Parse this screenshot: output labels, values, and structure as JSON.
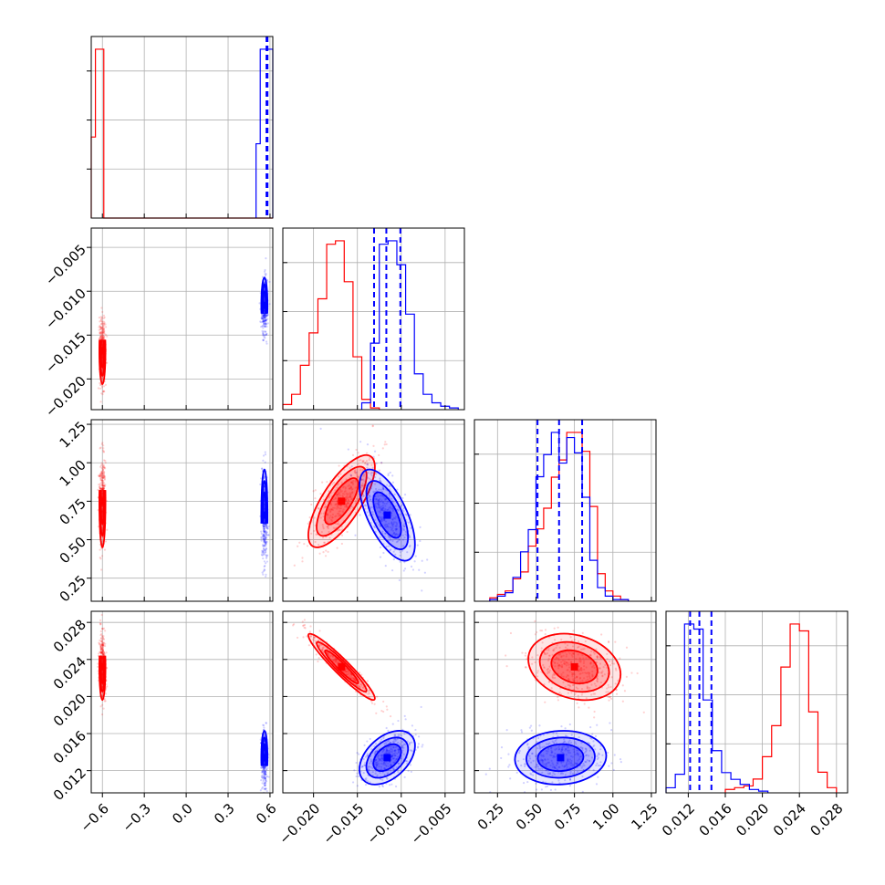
{
  "colors": {
    "series_a": "#ff0000",
    "series_b": "#0000ff"
  },
  "chart_data": {
    "type": "corner",
    "grid": true,
    "params": [
      {
        "range": [
          -0.68,
          0.62
        ],
        "ticks": [
          -0.6,
          -0.3,
          0.0,
          0.3,
          0.6
        ],
        "tick_labels": [
          "−0.6",
          "−0.3",
          "0.0",
          "0.3",
          "0.6"
        ]
      },
      {
        "range": [
          -0.0235,
          -0.0028
        ],
        "ticks": [
          -0.02,
          -0.015,
          -0.01,
          -0.005
        ],
        "tick_labels": [
          "−0.020",
          "−0.015",
          "−0.010",
          "−0.005"
        ]
      },
      {
        "range": [
          0.1,
          1.28
        ],
        "ticks": [
          0.25,
          0.5,
          0.75,
          1.0,
          1.25
        ],
        "tick_labels": [
          "0.25",
          "0.50",
          "0.75",
          "1.00",
          "1.25"
        ]
      },
      {
        "range": [
          0.0096,
          0.0292
        ],
        "ticks": [
          0.012,
          0.016,
          0.02,
          0.024,
          0.028
        ],
        "tick_labels": [
          "0.012",
          "0.016",
          "0.020",
          "0.024",
          "0.028"
        ]
      }
    ],
    "series": [
      {
        "color": "#ff0000",
        "means": [
          -0.6,
          -0.0168,
          0.75,
          0.0232
        ],
        "cov": [
          [
            0.00012,
            0,
            0,
            0
          ],
          [
            0,
            3.6e-06,
            0.00021,
            -3.4e-06
          ],
          [
            0,
            0.00021,
            0.0225,
            -6.1e-05
          ],
          [
            0,
            -3.4e-06,
            -6.1e-05,
            3.2e-06
          ]
        ],
        "hist": [
          {
            "edges": [
              -0.68,
              -0.65,
              -0.62,
              -0.59,
              0.62
            ],
            "counts": [
              0.48,
              1.0,
              1.0,
              0.0
            ]
          },
          {
            "edges": [
              -0.0235,
              -0.0225,
              -0.0215,
              -0.0205,
              -0.0195,
              -0.0185,
              -0.0175,
              -0.0165,
              -0.0155,
              -0.0145,
              -0.0135,
              -0.0125
            ],
            "counts": [
              0.03,
              0.09,
              0.26,
              0.45,
              0.65,
              0.97,
              0.99,
              0.75,
              0.31,
              0.06,
              0.01
            ]
          },
          {
            "edges": [
              0.2,
              0.25,
              0.3,
              0.35,
              0.4,
              0.45,
              0.5,
              0.55,
              0.6,
              0.65,
              0.7,
              0.75,
              0.8,
              0.85,
              0.9,
              0.95,
              1.0,
              1.05,
              1.1
            ],
            "counts": [
              0.02,
              0.04,
              0.06,
              0.13,
              0.17,
              0.32,
              0.42,
              0.54,
              0.72,
              0.82,
              0.98,
              0.98,
              0.87,
              0.55,
              0.16,
              0.06,
              0.03,
              0.01
            ]
          },
          {
            "edges": [
              0.016,
              0.017,
              0.018,
              0.019,
              0.02,
              0.021,
              0.022,
              0.023,
              0.024,
              0.025,
              0.026,
              0.027,
              0.028
            ],
            "counts": [
              0.02,
              0.03,
              0.04,
              0.08,
              0.21,
              0.39,
              0.73,
              0.98,
              0.94,
              0.47,
              0.12,
              0.03
            ]
          }
        ],
        "quantiles": []
      },
      {
        "color": "#0000ff",
        "means": [
          0.56,
          -0.0116,
          0.66,
          0.0134
        ],
        "cov": [
          [
            0.00012,
            0,
            0,
            0
          ],
          [
            0,
            2.5e-06,
            -0.00015,
            1e-06
          ],
          [
            0,
            -0.00015,
            0.022,
            1.4e-05
          ],
          [
            0,
            1e-06,
            1.4e-05,
            2.1e-06
          ]
        ],
        "hist": [
          {
            "edges": [
              0.5,
              0.53,
              0.56,
              0.59,
              0.62
            ],
            "counts": [
              0.44,
              1.0,
              1.0,
              1.0
            ]
          },
          {
            "edges": [
              -0.0145,
              -0.0135,
              -0.0125,
              -0.0115,
              -0.0105,
              -0.0095,
              -0.0085,
              -0.0075,
              -0.0065,
              -0.0055,
              -0.0045,
              -0.0035
            ],
            "counts": [
              0.04,
              0.39,
              0.97,
              0.99,
              0.85,
              0.56,
              0.21,
              0.09,
              0.04,
              0.02,
              0.01
            ]
          },
          {
            "edges": [
              0.2,
              0.25,
              0.3,
              0.35,
              0.4,
              0.45,
              0.5,
              0.55,
              0.6,
              0.65,
              0.7,
              0.75,
              0.8,
              0.85,
              0.9,
              0.95,
              1.0,
              1.05,
              1.1
            ],
            "counts": [
              0.01,
              0.03,
              0.05,
              0.14,
              0.29,
              0.42,
              0.73,
              0.86,
              0.99,
              0.81,
              0.96,
              0.87,
              0.61,
              0.24,
              0.08,
              0.03,
              0.01,
              0.01
            ]
          },
          {
            "edges": [
              0.0096,
              0.0106,
              0.0116,
              0.0126,
              0.0136,
              0.0146,
              0.0156,
              0.0166,
              0.0176,
              0.0186,
              0.0196,
              0.0206
            ],
            "counts": [
              0.03,
              0.11,
              1.0,
              0.97,
              0.55,
              0.25,
              0.12,
              0.08,
              0.05,
              0.02,
              0.01
            ]
          }
        ],
        "quantiles": [
          [
            0.575,
            0.578,
            0.582
          ],
          [
            -0.0131,
            -0.0117,
            -0.0101
          ],
          [
            0.51,
            0.65,
            0.8
          ],
          [
            0.0122,
            0.0132,
            0.0145
          ]
        ]
      }
    ]
  }
}
